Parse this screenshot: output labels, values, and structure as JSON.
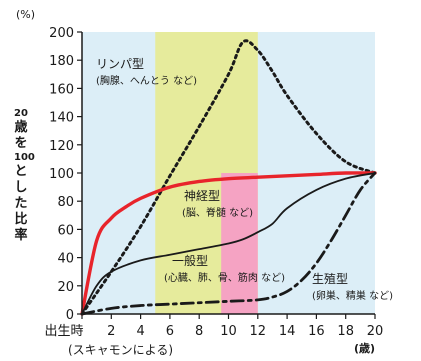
{
  "chart_data": {
    "type": "line",
    "yunit": "(%)",
    "xunit": "(歳)",
    "ylabel_parts": [
      "20",
      "歳",
      "を",
      "100",
      "と",
      "し",
      "た",
      "比",
      "率"
    ],
    "source_note": "(スキャモンによる)",
    "xlim": [
      0,
      20
    ],
    "ylim": [
      0,
      200
    ],
    "x_ticks": [
      0,
      2,
      4,
      6,
      8,
      10,
      12,
      14,
      16,
      18,
      20
    ],
    "x_tick_labels": [
      "出生時",
      "2",
      "4",
      "6",
      "8",
      "10",
      "12",
      "14",
      "16",
      "18",
      "20"
    ],
    "y_ticks": [
      0,
      20,
      40,
      60,
      80,
      100,
      120,
      140,
      160,
      180,
      200
    ],
    "y_tick_labels": [
      "0",
      "20",
      "40",
      "60",
      "80",
      "100",
      "120",
      "140",
      "160",
      "180",
      "200"
    ],
    "bands": [
      {
        "x0": 5,
        "x1": 12,
        "y0": 0,
        "y1": 200,
        "color": "#e6eb9c"
      },
      {
        "x0": 9.5,
        "x1": 12,
        "y0": 0,
        "y1": 100,
        "color": "#f5a3c3"
      }
    ],
    "background_color": "#dceef7",
    "series": [
      {
        "name": "リンパ型",
        "sub": "(胸腺、へんとう など)",
        "style": "dotted",
        "color": "#1a1a1a",
        "x": [
          0,
          2,
          4,
          6,
          8,
          10,
          11,
          12,
          13,
          14,
          16,
          18,
          20
        ],
        "y": [
          0,
          30,
          62,
          98,
          133,
          170,
          193,
          187,
          172,
          155,
          128,
          108,
          100
        ]
      },
      {
        "name": "神経型",
        "sub": "(脳、脊髄 など)",
        "style": "solid",
        "color": "#e8242b",
        "x": [
          0,
          1,
          2,
          3,
          4,
          6,
          8,
          10,
          12,
          14,
          16,
          18,
          20
        ],
        "y": [
          0,
          52,
          68,
          76,
          82,
          90,
          94,
          96,
          97,
          98,
          99,
          100,
          100
        ]
      },
      {
        "name": "一般型",
        "sub": "(心臓、肺、骨、筋肉 など)",
        "style": "solid",
        "color": "#1a1a1a",
        "x": [
          0,
          1,
          2,
          4,
          6,
          8,
          10,
          11,
          12,
          13,
          14,
          16,
          18,
          20
        ],
        "y": [
          0,
          20,
          30,
          38,
          42,
          46,
          50,
          53,
          58,
          64,
          75,
          88,
          96,
          100
        ]
      },
      {
        "name": "生殖型",
        "sub": "(卵巣、精巣 など)",
        "style": "dashdot",
        "color": "#1a1a1a",
        "x": [
          0,
          2,
          4,
          6,
          8,
          10,
          12,
          13,
          14,
          15,
          16,
          17,
          18,
          19,
          20
        ],
        "y": [
          0,
          4,
          6,
          7,
          8,
          9,
          10,
          12,
          16,
          24,
          36,
          52,
          70,
          88,
          100
        ]
      }
    ]
  }
}
